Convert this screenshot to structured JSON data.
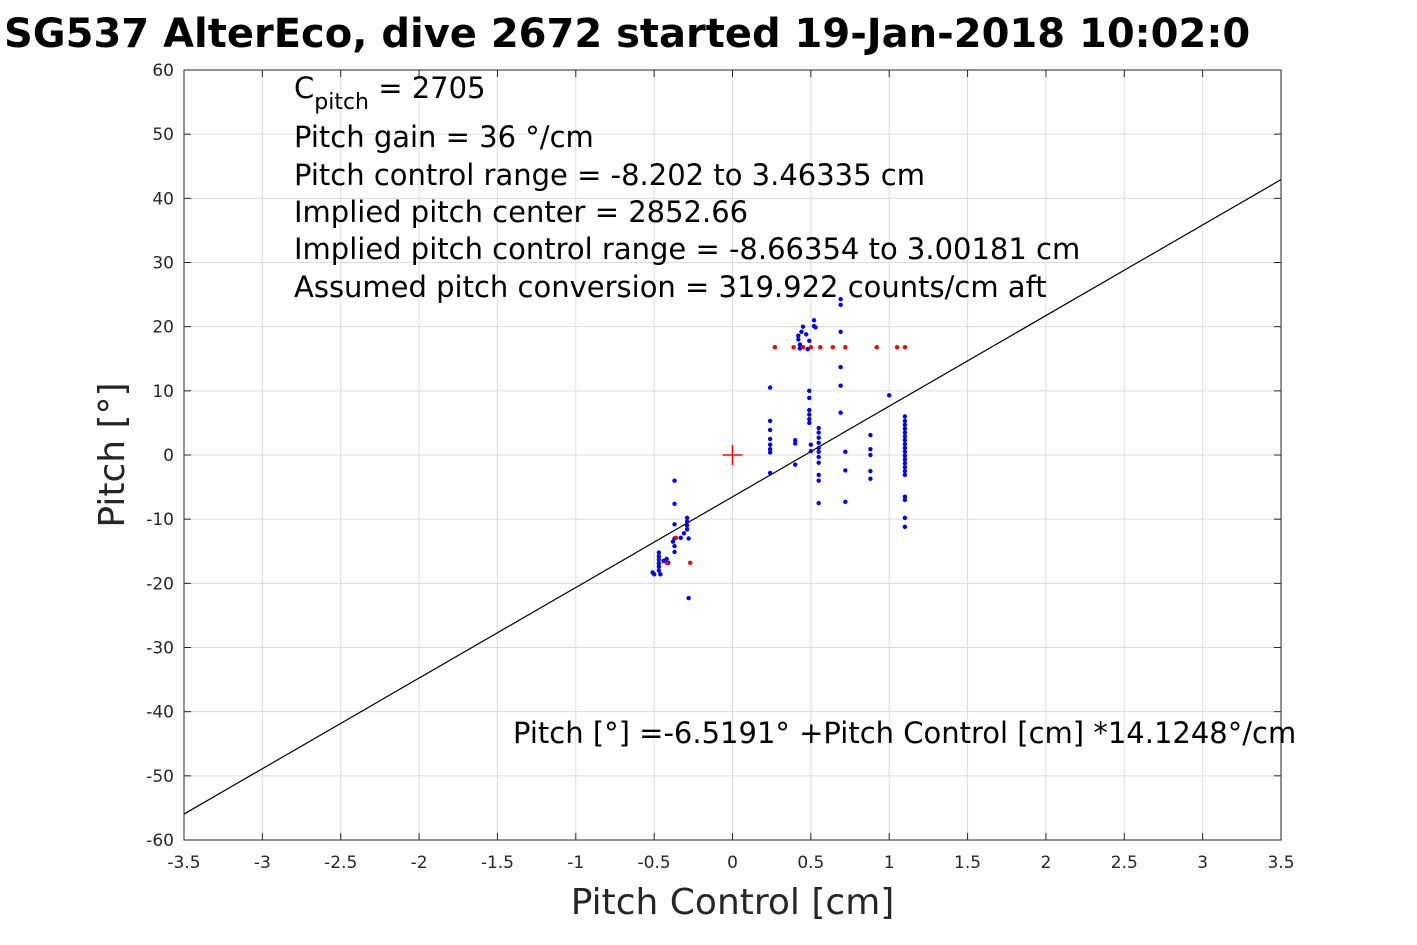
{
  "chart_data": {
    "type": "scatter",
    "title": "SG537 AlterEco, dive 2672 started 19-Jan-2018 10:02:0",
    "xlabel": "Pitch Control [cm]",
    "ylabel": "Pitch [°]",
    "xlim": [
      -3.5,
      3.5
    ],
    "ylim": [
      -60,
      60
    ],
    "xticks": [
      -3.5,
      -3,
      -2.5,
      -2,
      -1.5,
      -1,
      -0.5,
      0,
      0.5,
      1,
      1.5,
      2,
      2.5,
      3,
      3.5
    ],
    "xtick_labels": [
      "-3.5",
      "-3",
      "-2.5",
      "-2",
      "-1.5",
      "-1",
      "-0.5",
      "0",
      "0.5",
      "1",
      "1.5",
      "2",
      "2.5",
      "3",
      "3.5"
    ],
    "yticks": [
      -60,
      -50,
      -40,
      -30,
      -20,
      -10,
      0,
      10,
      20,
      30,
      40,
      50,
      60
    ],
    "ytick_labels": [
      "-60",
      "-50",
      "-40",
      "-30",
      "-20",
      "-10",
      "0",
      "10",
      "20",
      "30",
      "40",
      "50",
      "60"
    ],
    "grid": true,
    "annotations": {
      "c_pitch_main": "C",
      "c_pitch_sub": "pitch",
      "c_pitch_value": " = 2705",
      "lines": [
        "Pitch gain = 36 °/cm",
        "Pitch control range = -8.202 to 3.46335 cm",
        "Implied pitch center = 2852.66",
        "Implied pitch control range = -8.66354 to 3.00181 cm",
        "Assumed pitch conversion = 319.922 counts/cm aft"
      ],
      "fit_equation": "Pitch [°] =-6.5191° +Pitch Control [cm] *14.1248°/cm"
    },
    "fit_line": {
      "intercept": -6.5191,
      "slope": 14.1248,
      "x_range": [
        -3.5,
        3.5
      ],
      "color": "#000000"
    },
    "center_marker": {
      "x": 0,
      "y": 0,
      "color": "#ff0000",
      "shape": "plus"
    },
    "series": [
      {
        "color": "#0000ff",
        "points": [
          [
            -0.51,
            -18.3
          ],
          [
            -0.5,
            -18.6
          ],
          [
            -0.47,
            -15.2
          ],
          [
            -0.47,
            -15.8
          ],
          [
            -0.47,
            -16.3
          ],
          [
            -0.47,
            -16.9
          ],
          [
            -0.47,
            -17.4
          ],
          [
            -0.47,
            -18.0
          ],
          [
            -0.46,
            -18.6
          ],
          [
            -0.44,
            -16.5
          ],
          [
            -0.42,
            -16.2
          ],
          [
            -0.41,
            -16.8
          ],
          [
            -0.38,
            -13.5
          ],
          [
            -0.37,
            -4.0
          ],
          [
            -0.37,
            -7.6
          ],
          [
            -0.37,
            -10.8
          ],
          [
            -0.37,
            -13.0
          ],
          [
            -0.37,
            -14.2
          ],
          [
            -0.37,
            -15.1
          ],
          [
            -0.33,
            -12.9
          ],
          [
            -0.31,
            -12.2
          ],
          [
            -0.29,
            -9.8
          ],
          [
            -0.29,
            -10.4
          ],
          [
            -0.29,
            -11.0
          ],
          [
            -0.29,
            -11.6
          ],
          [
            -0.28,
            -13.0
          ],
          [
            -0.28,
            -22.3
          ],
          [
            0.24,
            10.5
          ],
          [
            0.24,
            5.3
          ],
          [
            0.24,
            3.9
          ],
          [
            0.24,
            2.5
          ],
          [
            0.24,
            1.6
          ],
          [
            0.24,
            0.9
          ],
          [
            0.24,
            0.4
          ],
          [
            0.24,
            -2.8
          ],
          [
            0.4,
            2.3
          ],
          [
            0.4,
            1.8
          ],
          [
            0.4,
            -1.5
          ],
          [
            0.42,
            18.0
          ],
          [
            0.42,
            18.6
          ],
          [
            0.43,
            17.2
          ],
          [
            0.43,
            16.6
          ],
          [
            0.44,
            19.2
          ],
          [
            0.45,
            20.0
          ],
          [
            0.47,
            18.8
          ],
          [
            0.48,
            16.5
          ],
          [
            0.49,
            17.8
          ],
          [
            0.49,
            10.0
          ],
          [
            0.49,
            8.9
          ],
          [
            0.49,
            7.0
          ],
          [
            0.49,
            6.3
          ],
          [
            0.49,
            5.6
          ],
          [
            0.49,
            5.0
          ],
          [
            0.5,
            1.6
          ],
          [
            0.5,
            0.6
          ],
          [
            0.52,
            21.0
          ],
          [
            0.52,
            20.1
          ],
          [
            0.53,
            19.9
          ],
          [
            0.55,
            4.2
          ],
          [
            0.55,
            3.5
          ],
          [
            0.55,
            2.7
          ],
          [
            0.55,
            1.9
          ],
          [
            0.55,
            1.1
          ],
          [
            0.55,
            0.5
          ],
          [
            0.55,
            -0.3
          ],
          [
            0.55,
            -1.2
          ],
          [
            0.55,
            -3.1
          ],
          [
            0.55,
            -4.0
          ],
          [
            0.55,
            -7.5
          ],
          [
            0.69,
            23.4
          ],
          [
            0.69,
            24.3
          ],
          [
            0.69,
            19.2
          ],
          [
            0.69,
            13.7
          ],
          [
            0.69,
            10.8
          ],
          [
            0.69,
            6.6
          ],
          [
            0.72,
            0.5
          ],
          [
            0.72,
            -2.4
          ],
          [
            0.72,
            -7.3
          ],
          [
            0.88,
            3.1
          ],
          [
            0.88,
            0.9
          ],
          [
            0.88,
            0.0
          ],
          [
            0.88,
            -2.5
          ],
          [
            0.88,
            -3.7
          ],
          [
            1.0,
            9.3
          ],
          [
            1.1,
            6.0
          ],
          [
            1.1,
            5.3
          ],
          [
            1.1,
            4.7
          ],
          [
            1.1,
            4.1
          ],
          [
            1.1,
            3.5
          ],
          [
            1.1,
            2.9
          ],
          [
            1.1,
            2.3
          ],
          [
            1.1,
            1.7
          ],
          [
            1.1,
            1.1
          ],
          [
            1.1,
            0.5
          ],
          [
            1.1,
            -0.1
          ],
          [
            1.1,
            -0.7
          ],
          [
            1.1,
            -1.3
          ],
          [
            1.1,
            -1.9
          ],
          [
            1.1,
            -2.5
          ],
          [
            1.1,
            -3.1
          ],
          [
            1.1,
            -6.5
          ],
          [
            1.1,
            -7.0
          ],
          [
            1.1,
            -9.8
          ],
          [
            1.1,
            -11.2
          ]
        ]
      },
      {
        "color": "#ff0000",
        "points": [
          [
            -0.42,
            -16.8
          ],
          [
            -0.36,
            -12.9
          ],
          [
            -0.27,
            -16.8
          ],
          [
            0.27,
            16.8
          ],
          [
            0.39,
            16.8
          ],
          [
            0.45,
            16.8
          ],
          [
            0.5,
            16.8
          ],
          [
            0.56,
            16.8
          ],
          [
            0.64,
            16.8
          ],
          [
            0.72,
            16.8
          ],
          [
            0.92,
            16.8
          ],
          [
            1.05,
            16.8
          ],
          [
            1.1,
            16.8
          ]
        ]
      }
    ]
  }
}
